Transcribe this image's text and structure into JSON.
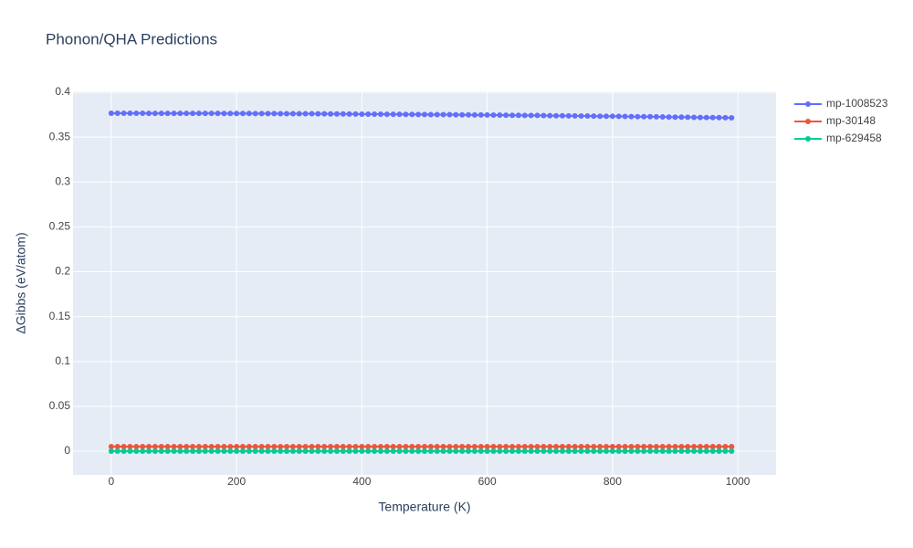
{
  "chart_data": {
    "type": "line",
    "title": "Phonon/QHA Predictions",
    "x_label": "Temperature (K)",
    "y_label": "ΔGibbs (eV/atom)",
    "x": [
      0,
      10,
      20,
      30,
      40,
      50,
      60,
      70,
      80,
      90,
      100,
      110,
      120,
      130,
      140,
      150,
      160,
      170,
      180,
      190,
      200,
      210,
      220,
      230,
      240,
      250,
      260,
      270,
      280,
      290,
      300,
      310,
      320,
      330,
      340,
      350,
      360,
      370,
      380,
      390,
      400,
      410,
      420,
      430,
      440,
      450,
      460,
      470,
      480,
      490,
      500,
      510,
      520,
      530,
      540,
      550,
      560,
      570,
      580,
      590,
      600,
      610,
      620,
      630,
      640,
      650,
      660,
      670,
      680,
      690,
      700,
      710,
      720,
      730,
      740,
      750,
      760,
      770,
      780,
      790,
      800,
      810,
      820,
      830,
      840,
      850,
      860,
      870,
      880,
      890,
      900,
      910,
      920,
      930,
      940,
      950,
      960,
      970,
      980,
      990
    ],
    "series": [
      {
        "name": "mp-1008523",
        "color": "#636efa",
        "values": [
          0.3766,
          0.3766,
          0.3766,
          0.3766,
          0.3766,
          0.3766,
          0.3765,
          0.3765,
          0.3765,
          0.3765,
          0.3765,
          0.3765,
          0.3765,
          0.3764,
          0.3764,
          0.3764,
          0.3764,
          0.3764,
          0.3763,
          0.3763,
          0.3763,
          0.3763,
          0.3763,
          0.3762,
          0.3762,
          0.3762,
          0.3762,
          0.3761,
          0.3761,
          0.3761,
          0.376,
          0.376,
          0.376,
          0.3759,
          0.3759,
          0.3758,
          0.3758,
          0.3758,
          0.3757,
          0.3757,
          0.3756,
          0.3756,
          0.3755,
          0.3755,
          0.3754,
          0.3754,
          0.3754,
          0.3753,
          0.3753,
          0.3752,
          0.3752,
          0.3751,
          0.3751,
          0.375,
          0.375,
          0.3749,
          0.3748,
          0.3748,
          0.3747,
          0.3747,
          0.3746,
          0.3745,
          0.3745,
          0.3744,
          0.3743,
          0.3743,
          0.3742,
          0.3741,
          0.3741,
          0.374,
          0.3739,
          0.3738,
          0.3738,
          0.3737,
          0.3736,
          0.3735,
          0.3735,
          0.3734,
          0.3733,
          0.3732,
          0.3732,
          0.3731,
          0.373,
          0.3729,
          0.3728,
          0.3727,
          0.3727,
          0.3726,
          0.3725,
          0.3724,
          0.3723,
          0.3722,
          0.3721,
          0.372,
          0.3719,
          0.3718,
          0.3718,
          0.3717,
          0.3716,
          0.3715
        ]
      },
      {
        "name": "mp-30148",
        "color": "#ef553b",
        "values": [
          0.005,
          0.005,
          0.005,
          0.005,
          0.005,
          0.005,
          0.005,
          0.005,
          0.005,
          0.005,
          0.005,
          0.005,
          0.005,
          0.005,
          0.005,
          0.005,
          0.005,
          0.005,
          0.005,
          0.005,
          0.005,
          0.005,
          0.005,
          0.005,
          0.005,
          0.005,
          0.005,
          0.005,
          0.005,
          0.005,
          0.005,
          0.005,
          0.005,
          0.005,
          0.005,
          0.005,
          0.005,
          0.005,
          0.005,
          0.005,
          0.005,
          0.005,
          0.005,
          0.005,
          0.005,
          0.005,
          0.005,
          0.005,
          0.005,
          0.005,
          0.005,
          0.005,
          0.005,
          0.005,
          0.005,
          0.005,
          0.005,
          0.005,
          0.005,
          0.005,
          0.005,
          0.005,
          0.005,
          0.005,
          0.005,
          0.005,
          0.005,
          0.005,
          0.005,
          0.005,
          0.005,
          0.005,
          0.005,
          0.005,
          0.005,
          0.005,
          0.005,
          0.005,
          0.005,
          0.005,
          0.005,
          0.005,
          0.005,
          0.005,
          0.005,
          0.005,
          0.005,
          0.005,
          0.005,
          0.005,
          0.005,
          0.005,
          0.005,
          0.005,
          0.005,
          0.005,
          0.005,
          0.005,
          0.005,
          0.005
        ]
      },
      {
        "name": "mp-629458",
        "color": "#00cc96",
        "values": [
          0,
          0,
          0,
          0,
          0,
          0,
          0,
          0,
          0,
          0,
          0,
          0,
          0,
          0,
          0,
          0,
          0,
          0,
          0,
          0,
          0,
          0,
          0,
          0,
          0,
          0,
          0,
          0,
          0,
          0,
          0,
          0,
          0,
          0,
          0,
          0,
          0,
          0,
          0,
          0,
          0,
          0,
          0,
          0,
          0,
          0,
          0,
          0,
          0,
          0,
          0,
          0,
          0,
          0,
          0,
          0,
          0,
          0,
          0,
          0,
          0,
          0,
          0,
          0,
          0,
          0,
          0,
          0,
          0,
          0,
          0,
          0,
          0,
          0,
          0,
          0,
          0,
          0,
          0,
          0,
          0,
          0,
          0,
          0,
          0,
          0,
          0,
          0,
          0,
          0,
          0,
          0,
          0,
          0,
          0,
          0,
          0,
          0,
          0,
          0
        ]
      }
    ],
    "xlim": [
      -61,
      1061
    ],
    "xticks": [
      0,
      200,
      400,
      600,
      800,
      1000
    ],
    "ylim": [
      -0.0265,
      0.401
    ],
    "yticks": [
      0,
      0.05,
      0.1,
      0.15,
      0.2,
      0.25,
      0.3,
      0.35,
      0.4
    ],
    "grid": true
  }
}
